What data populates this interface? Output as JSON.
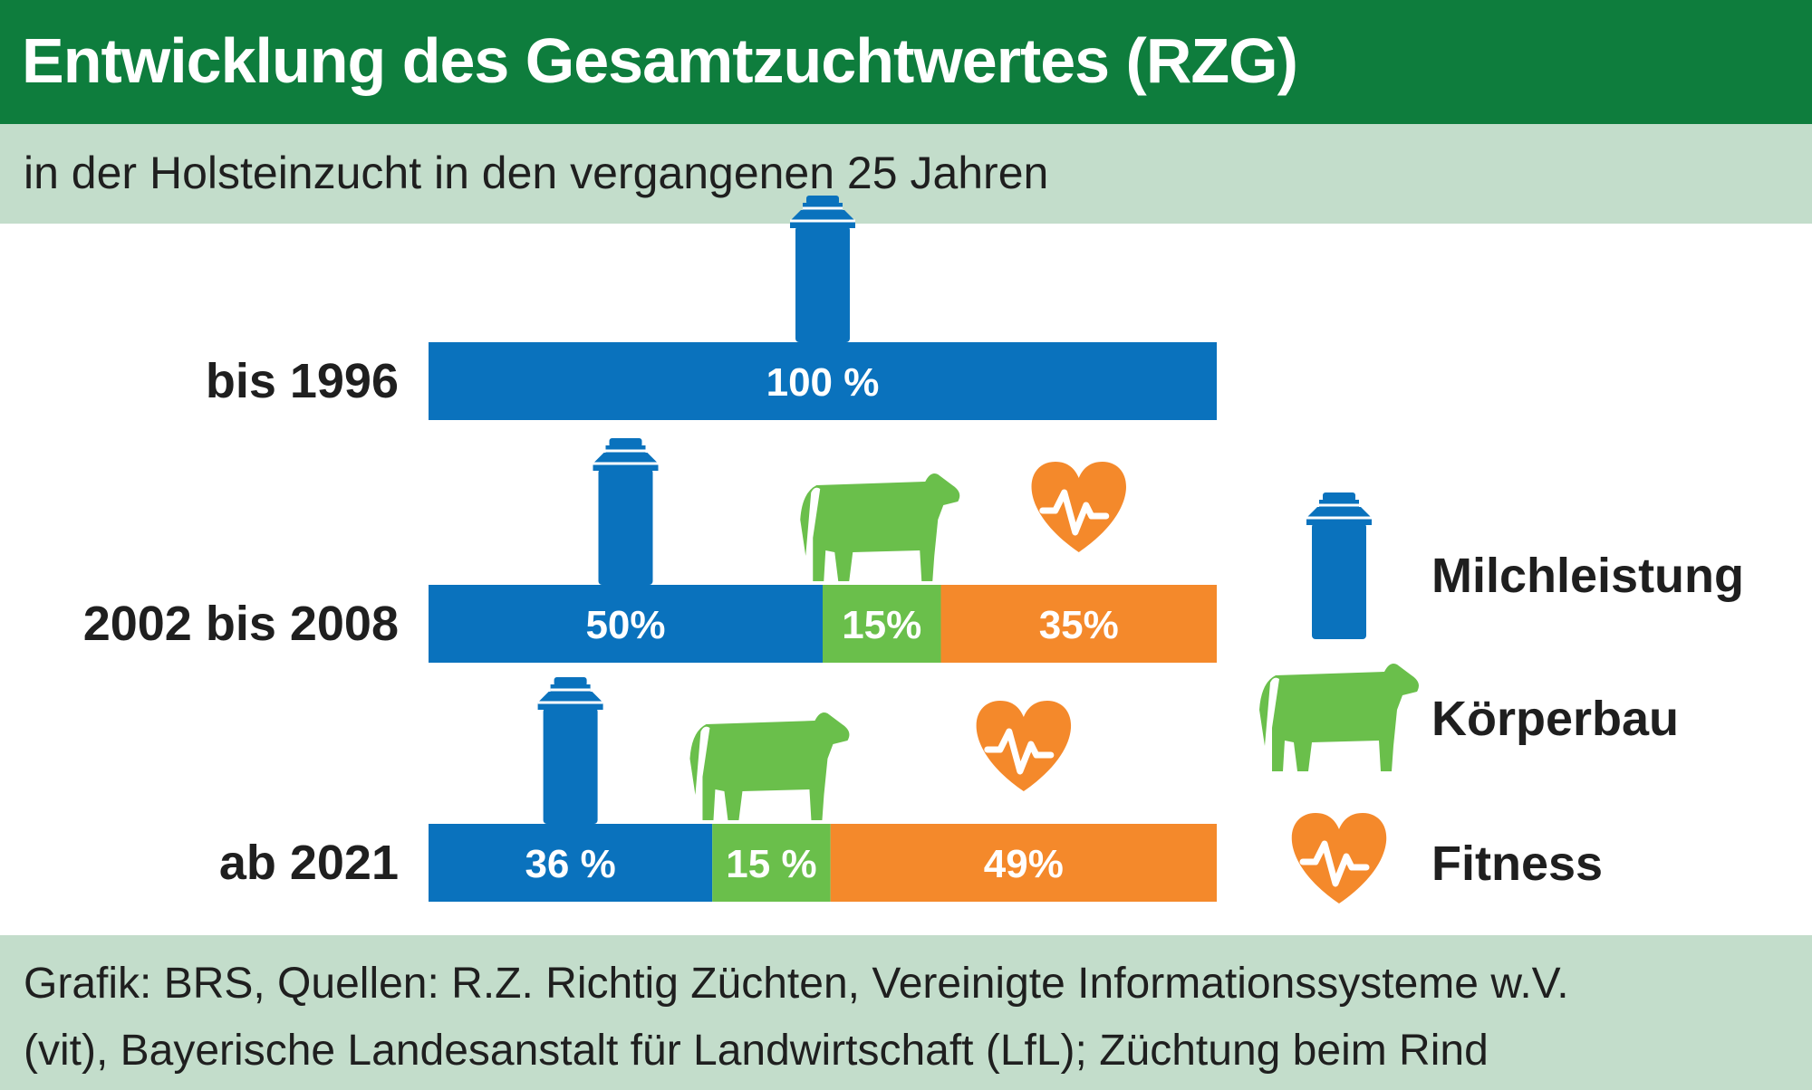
{
  "header": {
    "title": "Entwicklung des Gesamtzuchtwertes (RZG)",
    "subtitle": "in der Holsteinzucht in den vergangenen 25 Jahren"
  },
  "footer": {
    "line1": "Grafik: BRS, Quellen: R.Z. Richtig Züchten, Vereinigte Informationssysteme w.V.",
    "line2": "(vit), Bayerische Landesanstalt für Landwirtschaft (LfL); Züchtung beim Rind"
  },
  "colors": {
    "title_bar": "#0e7d3d",
    "light_bar": "#c3ddcb",
    "milch": "#0a72bd",
    "koerperbau": "#6abf4b",
    "fitness": "#f4892b"
  },
  "chart_data": {
    "type": "bar",
    "orientation": "horizontal-stacked",
    "unit": "%",
    "xlim": [
      0,
      100
    ],
    "categories": [
      "bis 1996",
      "2002 bis 2008",
      "ab 2021"
    ],
    "series": [
      {
        "name": "Milchleistung",
        "color": "#0a72bd",
        "icon": "milk-can-icon",
        "values": [
          100,
          50,
          36
        ],
        "labels": [
          "100 %",
          "50%",
          "36 %"
        ]
      },
      {
        "name": "Körperbau",
        "color": "#6abf4b",
        "icon": "cow-icon",
        "values": [
          0,
          15,
          15
        ],
        "labels": [
          "",
          "15%",
          "15 %"
        ]
      },
      {
        "name": "Fitness",
        "color": "#f4892b",
        "icon": "heart-pulse-icon",
        "values": [
          0,
          35,
          49
        ],
        "labels": [
          "",
          "35%",
          "49%"
        ]
      }
    ],
    "legend_position": "right"
  }
}
